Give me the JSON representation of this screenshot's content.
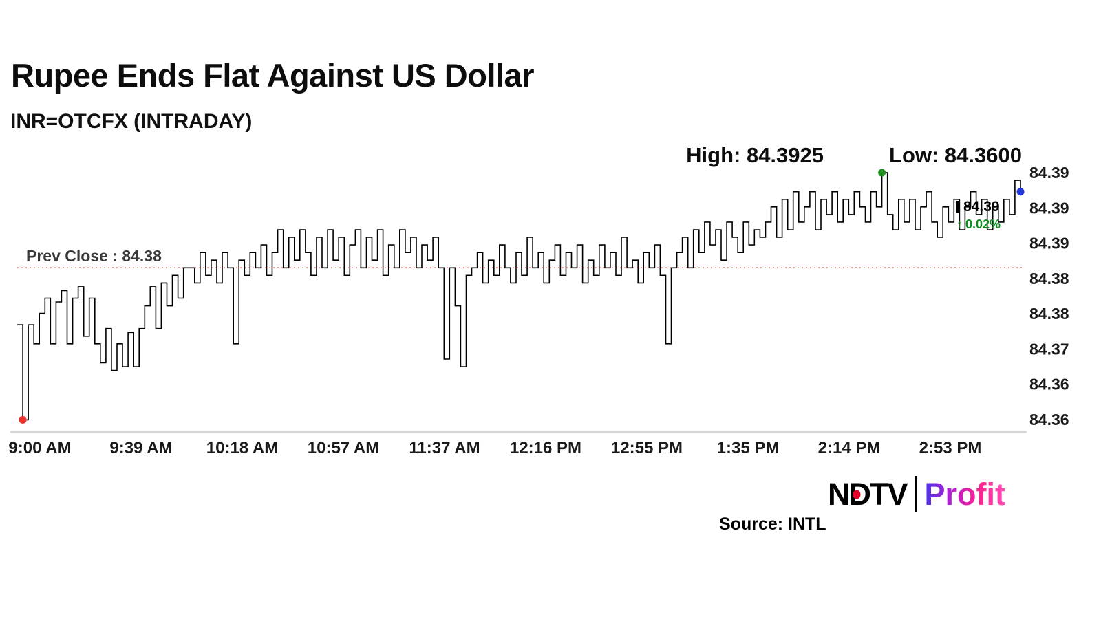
{
  "title": "Rupee Ends Flat Against US Dollar",
  "subtitle": "INR=OTCFX (INTRADAY)",
  "stats": {
    "high_label": "High: 84.3925",
    "low_label": "Low: 84.3600"
  },
  "prev_close": {
    "label": "Prev Close : 84.38",
    "value": 84.38
  },
  "last_quote": {
    "price": "84.39",
    "change": "0.02%",
    "direction": "up"
  },
  "icons": {
    "up_arrow": "↑"
  },
  "logo": {
    "ndtv": "NDTV",
    "profit": "Profit"
  },
  "source": "Source: INTL",
  "colors": {
    "line": "#000000",
    "prev_close_line": "#e03131",
    "low_dot": "#e8312a",
    "high_dot": "#1f8f1f",
    "last_dot": "#2438d8",
    "change_up": "#0a8f1f",
    "axis_line": "#c9c9c9",
    "tick_text": "#1a1a1a",
    "ndtv_red": "#e4002b",
    "profit_gradient": [
      "#4a32e8",
      "#b51fd0",
      "#ff1f8f",
      "#ff4fb8"
    ]
  },
  "chart_data": {
    "type": "line",
    "symbol": "INR=OTCFX",
    "title": "Rupee Ends Flat Against US Dollar",
    "high": 84.3925,
    "low": 84.36,
    "last": 84.39,
    "prev_close": 84.38,
    "change_pct": 0.02,
    "start_time": "9:00 AM",
    "sample_interval_minutes": 2,
    "x_tick_labels": [
      "9:00 AM",
      "9:39 AM",
      "10:18 AM",
      "10:57 AM",
      "11:37 AM",
      "12:16 PM",
      "12:55 PM",
      "1:35 PM",
      "2:14 PM",
      "2:53 PM"
    ],
    "y_tick_labels": [
      "84.39",
      "84.39",
      "84.39",
      "84.38",
      "84.38",
      "84.37",
      "84.36",
      "84.36"
    ],
    "ylim": [
      84.3585,
      84.3935
    ],
    "grid": false,
    "legend": false,
    "values": [
      84.3725,
      84.36,
      84.3725,
      84.37,
      84.374,
      84.376,
      84.37,
      84.3755,
      84.377,
      84.37,
      84.376,
      84.3775,
      84.371,
      84.376,
      84.37,
      84.3675,
      84.372,
      84.3665,
      84.37,
      84.367,
      84.3715,
      84.367,
      84.372,
      84.375,
      84.3775,
      84.372,
      84.378,
      84.375,
      84.379,
      84.376,
      84.38,
      84.38,
      84.378,
      84.382,
      84.379,
      84.381,
      84.378,
      84.382,
      84.38,
      84.37,
      84.381,
      84.379,
      84.382,
      84.38,
      84.383,
      84.379,
      84.382,
      84.385,
      84.38,
      84.384,
      84.381,
      84.385,
      84.382,
      84.379,
      84.384,
      84.38,
      84.385,
      84.381,
      84.384,
      84.379,
      84.383,
      84.385,
      84.38,
      84.384,
      84.381,
      84.385,
      84.379,
      84.383,
      84.38,
      84.385,
      84.382,
      84.384,
      84.38,
      84.383,
      84.381,
      84.384,
      84.38,
      84.368,
      84.38,
      84.375,
      84.367,
      84.379,
      84.38,
      84.382,
      84.378,
      84.381,
      84.379,
      84.383,
      84.38,
      84.378,
      84.382,
      84.379,
      84.384,
      84.38,
      84.382,
      84.378,
      84.381,
      84.383,
      84.379,
      84.382,
      84.38,
      84.383,
      84.378,
      84.381,
      84.379,
      84.383,
      84.38,
      84.382,
      84.379,
      84.384,
      84.38,
      84.381,
      84.378,
      84.382,
      84.38,
      84.383,
      84.379,
      84.37,
      84.38,
      84.382,
      84.384,
      84.38,
      84.385,
      84.382,
      84.386,
      84.383,
      84.385,
      84.381,
      84.386,
      84.384,
      84.382,
      84.386,
      84.383,
      84.385,
      84.384,
      84.386,
      84.388,
      84.384,
      84.389,
      84.385,
      84.39,
      84.386,
      84.388,
      84.39,
      84.385,
      84.389,
      84.387,
      84.39,
      84.386,
      84.389,
      84.387,
      84.39,
      84.388,
      84.386,
      84.39,
      84.388,
      84.3925,
      84.387,
      84.385,
      84.389,
      84.386,
      84.389,
      84.385,
      84.388,
      84.39,
      84.386,
      84.384,
      84.388,
      84.386,
      84.389,
      84.385,
      84.388,
      84.39,
      84.387,
      84.389,
      84.385,
      84.388,
      84.386,
      84.389,
      84.387,
      84.3915,
      84.39
    ]
  }
}
